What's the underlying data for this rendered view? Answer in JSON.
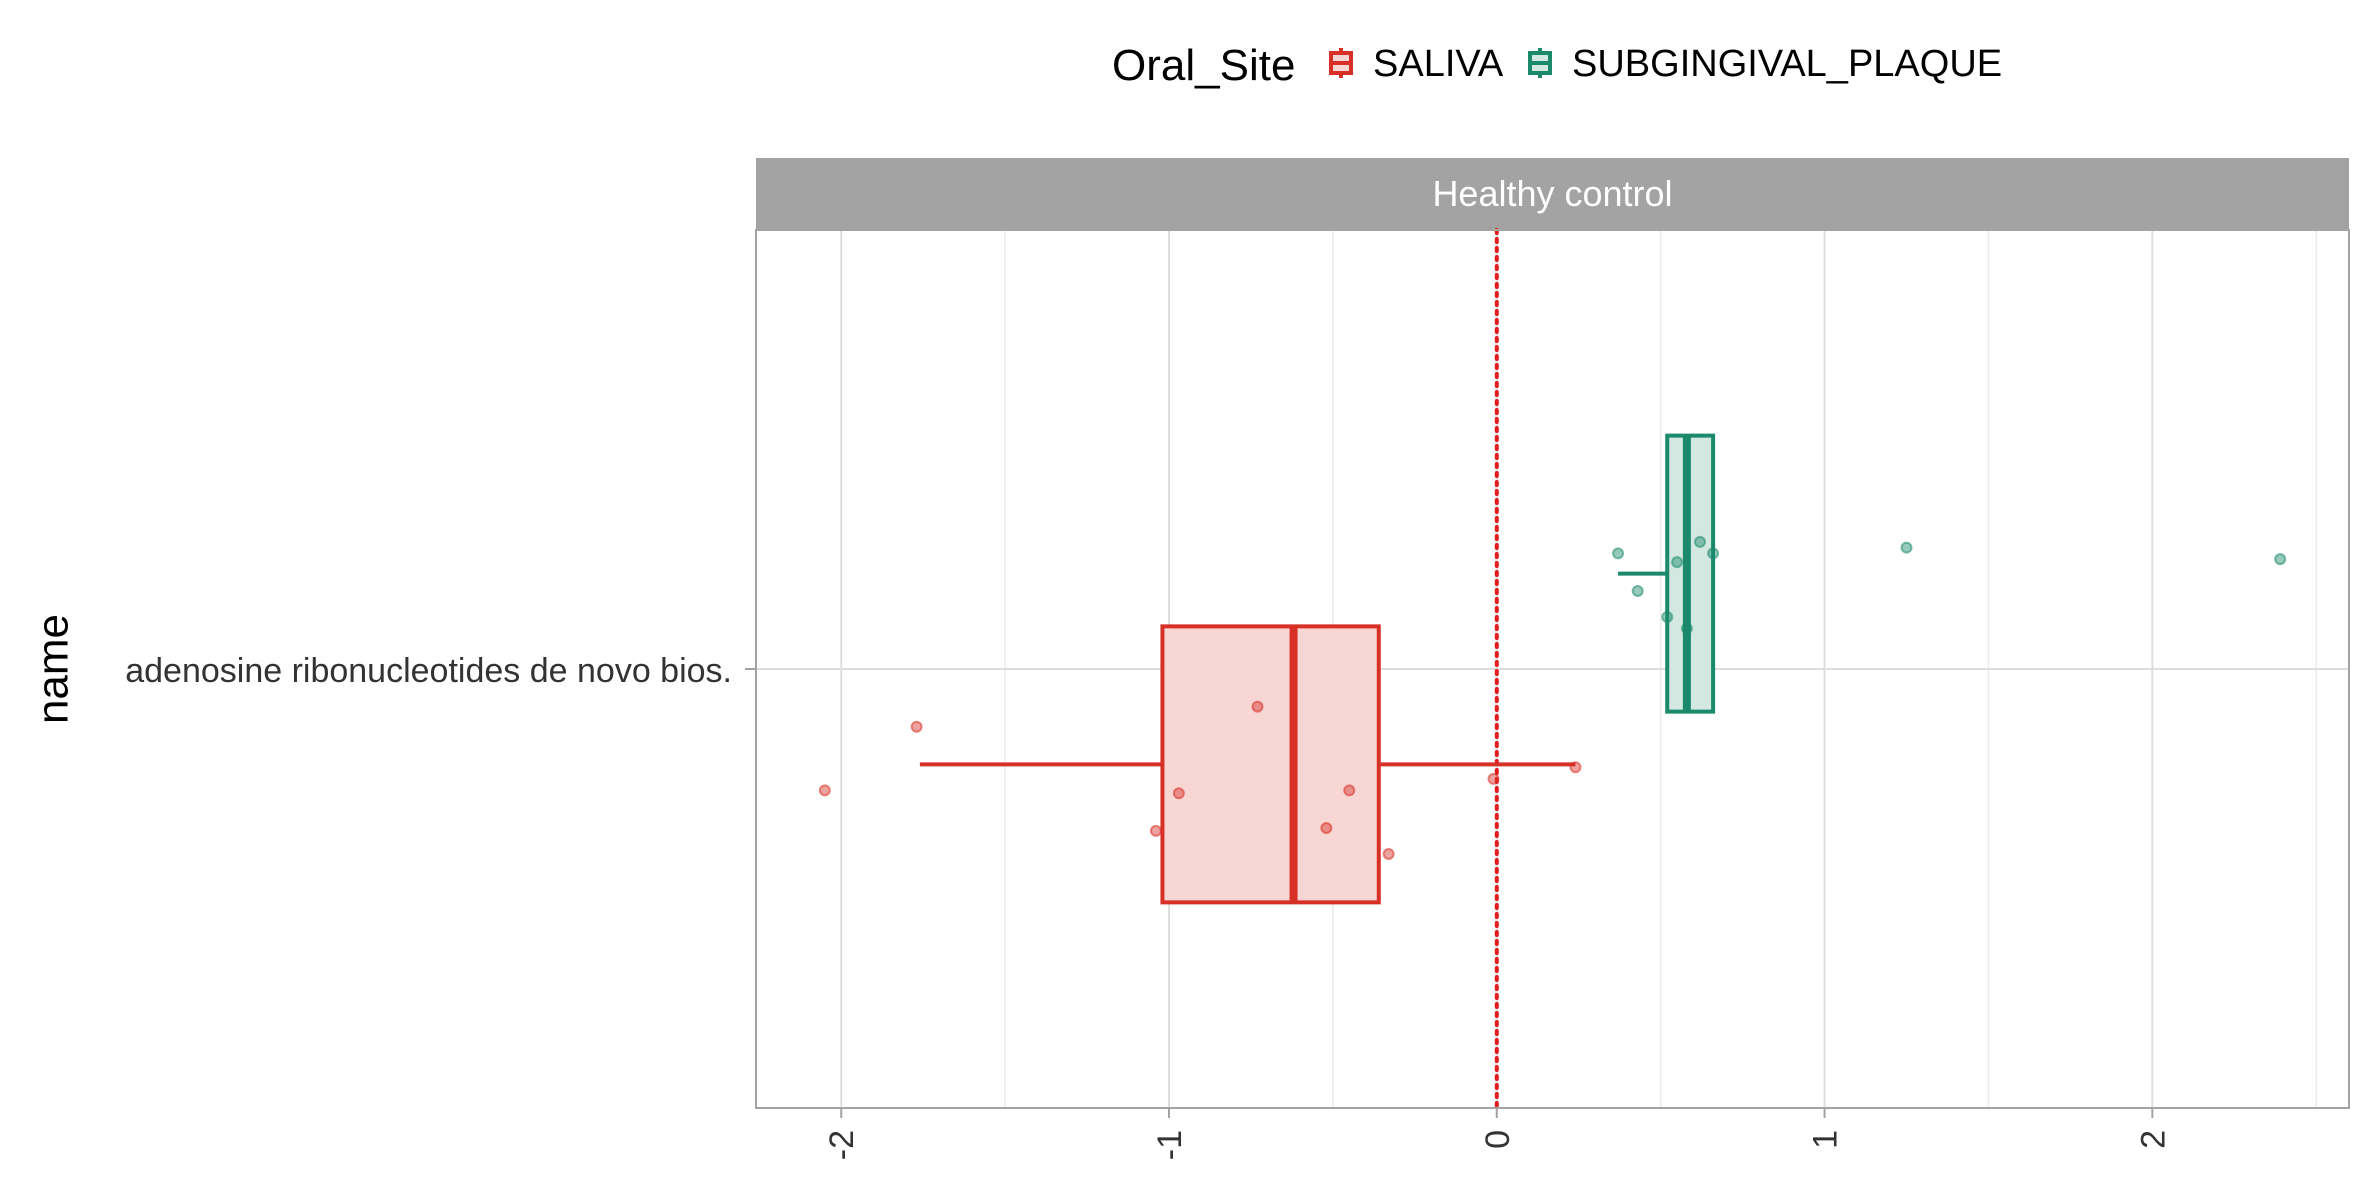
{
  "chart_data": {
    "type": "boxplot",
    "ylabel": "name",
    "categories": [
      "adenosine ribonucleotides de novo bios."
    ],
    "facet": "Healthy control",
    "legend": {
      "title": "Oral_Site",
      "position": "top",
      "entries": [
        "SALIVA",
        "SUBGINGIVAL_PLAQUE"
      ]
    },
    "xlim": [
      -2.26,
      2.6
    ],
    "xticks": [
      -2,
      -1,
      0,
      1,
      2
    ],
    "xtick_labels": [
      "-2",
      "-1",
      "0",
      "1",
      "2"
    ],
    "reference_line": {
      "x": 0,
      "style": "dotted",
      "color": "#e41a1c"
    },
    "grid": true,
    "series": [
      {
        "name": "SALIVA",
        "color": "#d73027",
        "fill": "#f7d6d3",
        "box": {
          "whisker_low": -1.76,
          "q1": -1.02,
          "median": -0.62,
          "q3": -0.36,
          "whisker_high": 0.24
        },
        "points": [
          {
            "x": -2.05,
            "y": -0.42
          },
          {
            "x": -1.77,
            "y": -0.2
          },
          {
            "x": -1.04,
            "y": -0.56
          },
          {
            "x": -0.97,
            "y": -0.43
          },
          {
            "x": -0.73,
            "y": -0.13
          },
          {
            "x": -0.52,
            "y": -0.55
          },
          {
            "x": -0.45,
            "y": -0.42
          },
          {
            "x": -0.33,
            "y": -0.64
          },
          {
            "x": -0.01,
            "y": -0.38
          },
          {
            "x": 0.24,
            "y": -0.34
          }
        ]
      },
      {
        "name": "SUBGINGIVAL_PLAQUE",
        "color": "#1b8a6b",
        "fill": "#d2e8e1",
        "box": {
          "whisker_low": 0.37,
          "q1": 0.52,
          "median": 0.58,
          "q3": 0.66,
          "whisker_high": 0.66
        },
        "points": [
          {
            "x": 0.37,
            "y": 0.4
          },
          {
            "x": 0.43,
            "y": 0.27
          },
          {
            "x": 0.52,
            "y": 0.18
          },
          {
            "x": 0.55,
            "y": 0.37
          },
          {
            "x": 0.58,
            "y": 0.14
          },
          {
            "x": 0.62,
            "y": 0.44
          },
          {
            "x": 0.66,
            "y": 0.4
          },
          {
            "x": 1.25,
            "y": 0.42
          },
          {
            "x": 2.39,
            "y": 0.38
          }
        ]
      }
    ]
  }
}
